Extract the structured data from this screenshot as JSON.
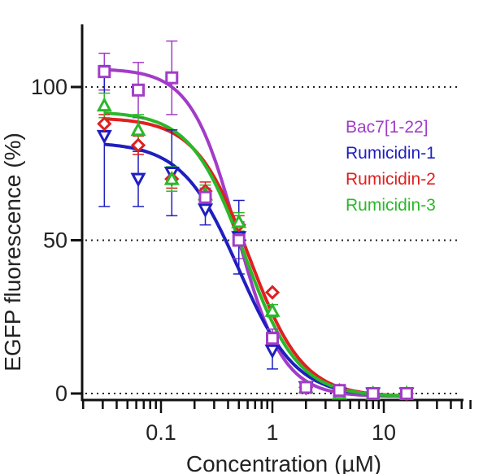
{
  "chart_data": {
    "type": "scatter",
    "title": "",
    "xlabel": "Concentration (µM)",
    "ylabel": "EGFP fluorescence (%)",
    "xscale": "log",
    "xlim": [
      0.02,
      60
    ],
    "ylim": [
      -2,
      120
    ],
    "x_ticks": [
      {
        "value": 0.1,
        "label": "0.1"
      },
      {
        "value": 1,
        "label": "1"
      },
      {
        "value": 10,
        "label": "10"
      }
    ],
    "y_ticks": [
      {
        "value": 0,
        "label": "0"
      },
      {
        "value": 50,
        "label": "50"
      },
      {
        "value": 100,
        "label": "100"
      }
    ],
    "reference_lines": [
      0,
      50,
      100
    ],
    "legend_position": "top-right",
    "series": [
      {
        "name": "Bac7[1-22]",
        "color": "#a23cc8",
        "marker": "square",
        "x": [
          0.031,
          0.0625,
          0.125,
          0.25,
          0.5,
          1,
          2,
          4,
          8,
          16
        ],
        "y": [
          105,
          99,
          103,
          64,
          50,
          18,
          2,
          1,
          0,
          0
        ],
        "err": [
          6,
          9,
          12,
          3,
          6,
          3,
          1,
          0.5,
          0.5,
          0.5
        ],
        "fit": {
          "top": 106,
          "bottom": -1,
          "ic50": 0.48,
          "hill": 2.1
        }
      },
      {
        "name": "Rumicidin-1",
        "color": "#1f1fc0",
        "marker": "triangle-down",
        "x": [
          0.031,
          0.0625,
          0.125,
          0.25,
          0.5,
          1,
          2,
          4,
          8,
          16
        ],
        "y": [
          84,
          70,
          72,
          60,
          51,
          14,
          2,
          0,
          0,
          0
        ],
        "err": [
          23,
          9,
          14,
          5,
          12,
          6,
          1,
          0.5,
          0.5,
          0.5
        ],
        "fit": {
          "top": 82,
          "bottom": -1,
          "ic50": 0.5,
          "hill": 1.7
        }
      },
      {
        "name": "Rumicidin-2",
        "color": "#e02020",
        "marker": "diamond",
        "x": [
          0.031,
          0.0625,
          0.125,
          0.25,
          0.5,
          1,
          2,
          4,
          8,
          16
        ],
        "y": [
          88,
          81,
          70,
          66,
          55,
          33,
          2,
          1,
          0,
          0
        ],
        "err": [
          3,
          3,
          3,
          3,
          3,
          1,
          1,
          0.5,
          0.5,
          0.5
        ],
        "fit": {
          "top": 90,
          "bottom": -1,
          "ic50": 0.62,
          "hill": 1.8
        }
      },
      {
        "name": "Rumicidin-3",
        "color": "#2ab82a",
        "marker": "triangle-up",
        "x": [
          0.031,
          0.0625,
          0.125,
          0.25,
          0.5,
          1,
          2,
          4,
          8,
          16
        ],
        "y": [
          94,
          86,
          70,
          65,
          56,
          27,
          2,
          0,
          0,
          0
        ],
        "err": [
          4,
          5,
          4,
          3,
          3,
          2,
          1,
          0.5,
          0.5,
          0.5
        ],
        "fit": {
          "top": 92,
          "bottom": -1,
          "ic50": 0.56,
          "hill": 1.8
        }
      }
    ]
  }
}
